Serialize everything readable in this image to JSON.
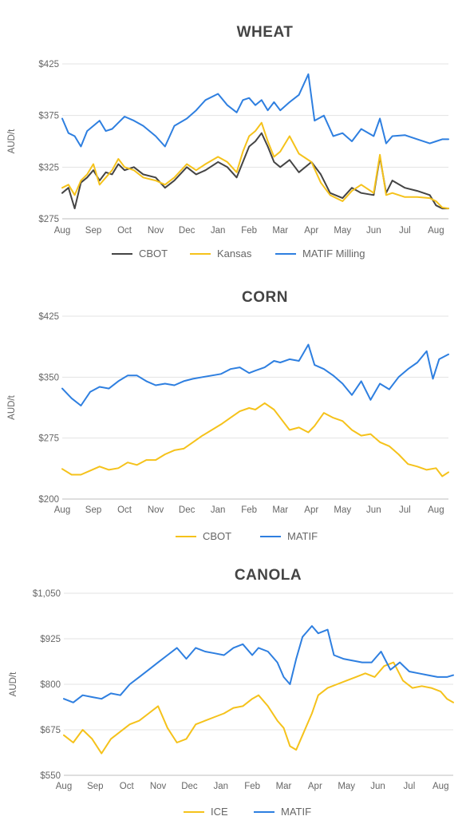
{
  "chart_data": [
    {
      "type": "line",
      "title": "WHEAT",
      "ylabel": "AUD/t",
      "ylim": [
        275,
        425
      ],
      "yticks": [
        275,
        325,
        375,
        425
      ],
      "ytick_labels": [
        "$275",
        "$325",
        "$375",
        "$425"
      ],
      "month_labels": [
        "Aug",
        "Sep",
        "Oct",
        "Nov",
        "Dec",
        "Jan",
        "Feb",
        "Mar",
        "Apr",
        "May",
        "Jun",
        "Jul",
        "Aug"
      ],
      "x_months": [
        0,
        12.4
      ],
      "series": [
        {
          "name": "CBOT",
          "color": "#444444",
          "x": [
            0,
            0.2,
            0.4,
            0.6,
            0.8,
            1,
            1.2,
            1.4,
            1.6,
            1.8,
            2,
            2.3,
            2.6,
            3,
            3.3,
            3.6,
            4,
            4.3,
            4.6,
            5,
            5.3,
            5.6,
            5.8,
            6,
            6.2,
            6.4,
            6.6,
            6.8,
            7,
            7.3,
            7.6,
            8,
            8.3,
            8.6,
            9,
            9.3,
            9.6,
            10,
            10.2,
            10.4,
            10.6,
            11,
            11.4,
            11.8,
            12,
            12.2,
            12.4
          ],
          "values": [
            300,
            305,
            285,
            310,
            315,
            322,
            312,
            320,
            318,
            328,
            322,
            325,
            318,
            315,
            305,
            312,
            325,
            318,
            322,
            330,
            325,
            315,
            330,
            345,
            350,
            358,
            345,
            330,
            325,
            332,
            320,
            330,
            318,
            300,
            295,
            305,
            300,
            298,
            335,
            300,
            312,
            305,
            302,
            298,
            288,
            285,
            285
          ]
        },
        {
          "name": "Kansas",
          "color": "#F5C21B",
          "x": [
            0,
            0.2,
            0.4,
            0.6,
            0.8,
            1,
            1.2,
            1.4,
            1.6,
            1.8,
            2,
            2.3,
            2.6,
            3,
            3.3,
            3.6,
            4,
            4.3,
            4.6,
            5,
            5.3,
            5.6,
            5.8,
            6,
            6.2,
            6.4,
            6.6,
            6.8,
            7,
            7.3,
            7.6,
            8,
            8.3,
            8.6,
            9,
            9.3,
            9.6,
            10,
            10.2,
            10.4,
            10.6,
            11,
            11.4,
            11.8,
            12,
            12.2,
            12.4
          ],
          "values": [
            305,
            308,
            298,
            312,
            318,
            328,
            308,
            315,
            322,
            333,
            325,
            322,
            315,
            312,
            308,
            315,
            328,
            322,
            328,
            335,
            330,
            320,
            340,
            355,
            360,
            368,
            350,
            335,
            340,
            355,
            338,
            330,
            310,
            298,
            292,
            302,
            308,
            300,
            337,
            298,
            300,
            296,
            296,
            295,
            292,
            286,
            285
          ]
        },
        {
          "name": "MATIF Milling",
          "color": "#2E7FE0",
          "x": [
            0,
            0.2,
            0.4,
            0.6,
            0.8,
            1,
            1.2,
            1.4,
            1.6,
            1.8,
            2,
            2.3,
            2.6,
            3,
            3.3,
            3.6,
            4,
            4.3,
            4.6,
            5,
            5.3,
            5.6,
            5.8,
            6,
            6.2,
            6.4,
            6.6,
            6.8,
            7,
            7.3,
            7.6,
            7.9,
            8.1,
            8.4,
            8.7,
            9,
            9.3,
            9.6,
            10,
            10.2,
            10.4,
            10.6,
            11,
            11.4,
            11.8,
            12,
            12.2,
            12.4
          ],
          "values": [
            372,
            358,
            355,
            345,
            360,
            365,
            370,
            360,
            362,
            368,
            374,
            370,
            365,
            355,
            345,
            365,
            372,
            380,
            390,
            396,
            385,
            378,
            390,
            392,
            385,
            390,
            380,
            388,
            380,
            388,
            395,
            415,
            370,
            375,
            355,
            358,
            350,
            362,
            355,
            372,
            348,
            355,
            356,
            352,
            348,
            350,
            352,
            352
          ]
        }
      ],
      "legend": "bottom-center"
    },
    {
      "type": "line",
      "title": "CORN",
      "ylabel": "AUD/t",
      "ylim": [
        200,
        425
      ],
      "yticks": [
        200,
        275,
        350,
        425
      ],
      "ytick_labels": [
        "$200",
        "$275",
        "$350",
        "$425"
      ],
      "month_labels": [
        "Aug",
        "Sep",
        "Oct",
        "Nov",
        "Dec",
        "Jan",
        "Feb",
        "Mar",
        "Apr",
        "May",
        "Jun",
        "Jul",
        "Aug"
      ],
      "x_months": [
        0,
        12.4
      ],
      "series": [
        {
          "name": "CBOT",
          "color": "#F5C21B",
          "x": [
            0,
            0.3,
            0.6,
            0.9,
            1.2,
            1.5,
            1.8,
            2.1,
            2.4,
            2.7,
            3,
            3.3,
            3.6,
            3.9,
            4.2,
            4.5,
            4.8,
            5.1,
            5.4,
            5.7,
            6,
            6.2,
            6.5,
            6.8,
            7,
            7.3,
            7.6,
            7.9,
            8.1,
            8.4,
            8.7,
            9,
            9.3,
            9.6,
            9.9,
            10.2,
            10.5,
            10.8,
            11.1,
            11.4,
            11.7,
            12,
            12.2,
            12.4
          ],
          "values": [
            237,
            230,
            230,
            235,
            240,
            236,
            238,
            245,
            242,
            248,
            248,
            255,
            260,
            262,
            270,
            278,
            285,
            292,
            300,
            308,
            312,
            310,
            318,
            310,
            300,
            285,
            288,
            282,
            290,
            306,
            300,
            296,
            285,
            278,
            280,
            270,
            265,
            255,
            243,
            240,
            236,
            238,
            228,
            233
          ]
        },
        {
          "name": "MATIF",
          "color": "#2E7FE0",
          "x": [
            0,
            0.3,
            0.6,
            0.9,
            1.2,
            1.5,
            1.8,
            2.1,
            2.4,
            2.7,
            3,
            3.3,
            3.6,
            3.9,
            4.2,
            4.5,
            4.8,
            5.1,
            5.4,
            5.7,
            6,
            6.2,
            6.5,
            6.8,
            7,
            7.3,
            7.6,
            7.9,
            8.1,
            8.4,
            8.7,
            9,
            9.3,
            9.6,
            9.9,
            10.2,
            10.5,
            10.8,
            11.1,
            11.4,
            11.7,
            11.9,
            12.1,
            12.4
          ],
          "values": [
            336,
            324,
            315,
            332,
            338,
            336,
            345,
            352,
            352,
            345,
            340,
            342,
            340,
            345,
            348,
            350,
            352,
            354,
            360,
            362,
            355,
            358,
            362,
            370,
            368,
            372,
            370,
            390,
            365,
            360,
            352,
            342,
            328,
            345,
            322,
            342,
            335,
            350,
            360,
            368,
            382,
            348,
            372,
            378
          ]
        }
      ],
      "legend": "bottom-center"
    },
    {
      "type": "line",
      "title": "CANOLA",
      "ylabel": "AUD/t",
      "ylim": [
        550,
        1050
      ],
      "yticks": [
        550,
        675,
        800,
        925,
        1050
      ],
      "ytick_labels": [
        "$550",
        "$675",
        "$800",
        "$925",
        "$1,050"
      ],
      "month_labels": [
        "Aug",
        "Sep",
        "Oct",
        "Nov",
        "Dec",
        "Jan",
        "Feb",
        "Mar",
        "Apr",
        "May",
        "Jun",
        "Jul",
        "Aug"
      ],
      "x_months": [
        0,
        12.4
      ],
      "series": [
        {
          "name": "ICE",
          "color": "#F5C21B",
          "x": [
            0,
            0.3,
            0.6,
            0.9,
            1.2,
            1.5,
            1.8,
            2.1,
            2.4,
            2.7,
            3,
            3.3,
            3.6,
            3.9,
            4.2,
            4.5,
            4.8,
            5.1,
            5.4,
            5.7,
            6,
            6.2,
            6.5,
            6.8,
            7,
            7.2,
            7.4,
            7.6,
            7.9,
            8.1,
            8.4,
            8.7,
            9,
            9.3,
            9.6,
            9.9,
            10.2,
            10.5,
            10.8,
            11.1,
            11.4,
            11.7,
            12,
            12.2,
            12.4
          ],
          "values": [
            660,
            640,
            675,
            650,
            610,
            650,
            670,
            690,
            700,
            720,
            740,
            680,
            640,
            650,
            690,
            700,
            710,
            720,
            735,
            740,
            760,
            770,
            740,
            700,
            680,
            630,
            620,
            660,
            720,
            770,
            790,
            800,
            810,
            820,
            830,
            820,
            850,
            860,
            810,
            790,
            795,
            790,
            780,
            760,
            750
          ]
        },
        {
          "name": "MATIF",
          "color": "#2E7FE0",
          "x": [
            0,
            0.3,
            0.6,
            0.9,
            1.2,
            1.5,
            1.8,
            2.1,
            2.4,
            2.7,
            3,
            3.3,
            3.6,
            3.9,
            4.2,
            4.5,
            4.8,
            5.1,
            5.4,
            5.7,
            6,
            6.2,
            6.5,
            6.8,
            7,
            7.2,
            7.4,
            7.6,
            7.9,
            8.1,
            8.4,
            8.6,
            8.9,
            9.2,
            9.5,
            9.8,
            10.1,
            10.4,
            10.7,
            11,
            11.3,
            11.6,
            11.9,
            12.2,
            12.4
          ],
          "values": [
            760,
            750,
            770,
            765,
            760,
            775,
            770,
            800,
            820,
            840,
            860,
            880,
            900,
            870,
            900,
            890,
            885,
            880,
            900,
            910,
            880,
            900,
            890,
            860,
            820,
            800,
            870,
            930,
            960,
            940,
            950,
            880,
            870,
            865,
            860,
            860,
            890,
            840,
            860,
            835,
            830,
            825,
            820,
            820,
            825
          ]
        }
      ],
      "legend": "bottom-center"
    }
  ]
}
